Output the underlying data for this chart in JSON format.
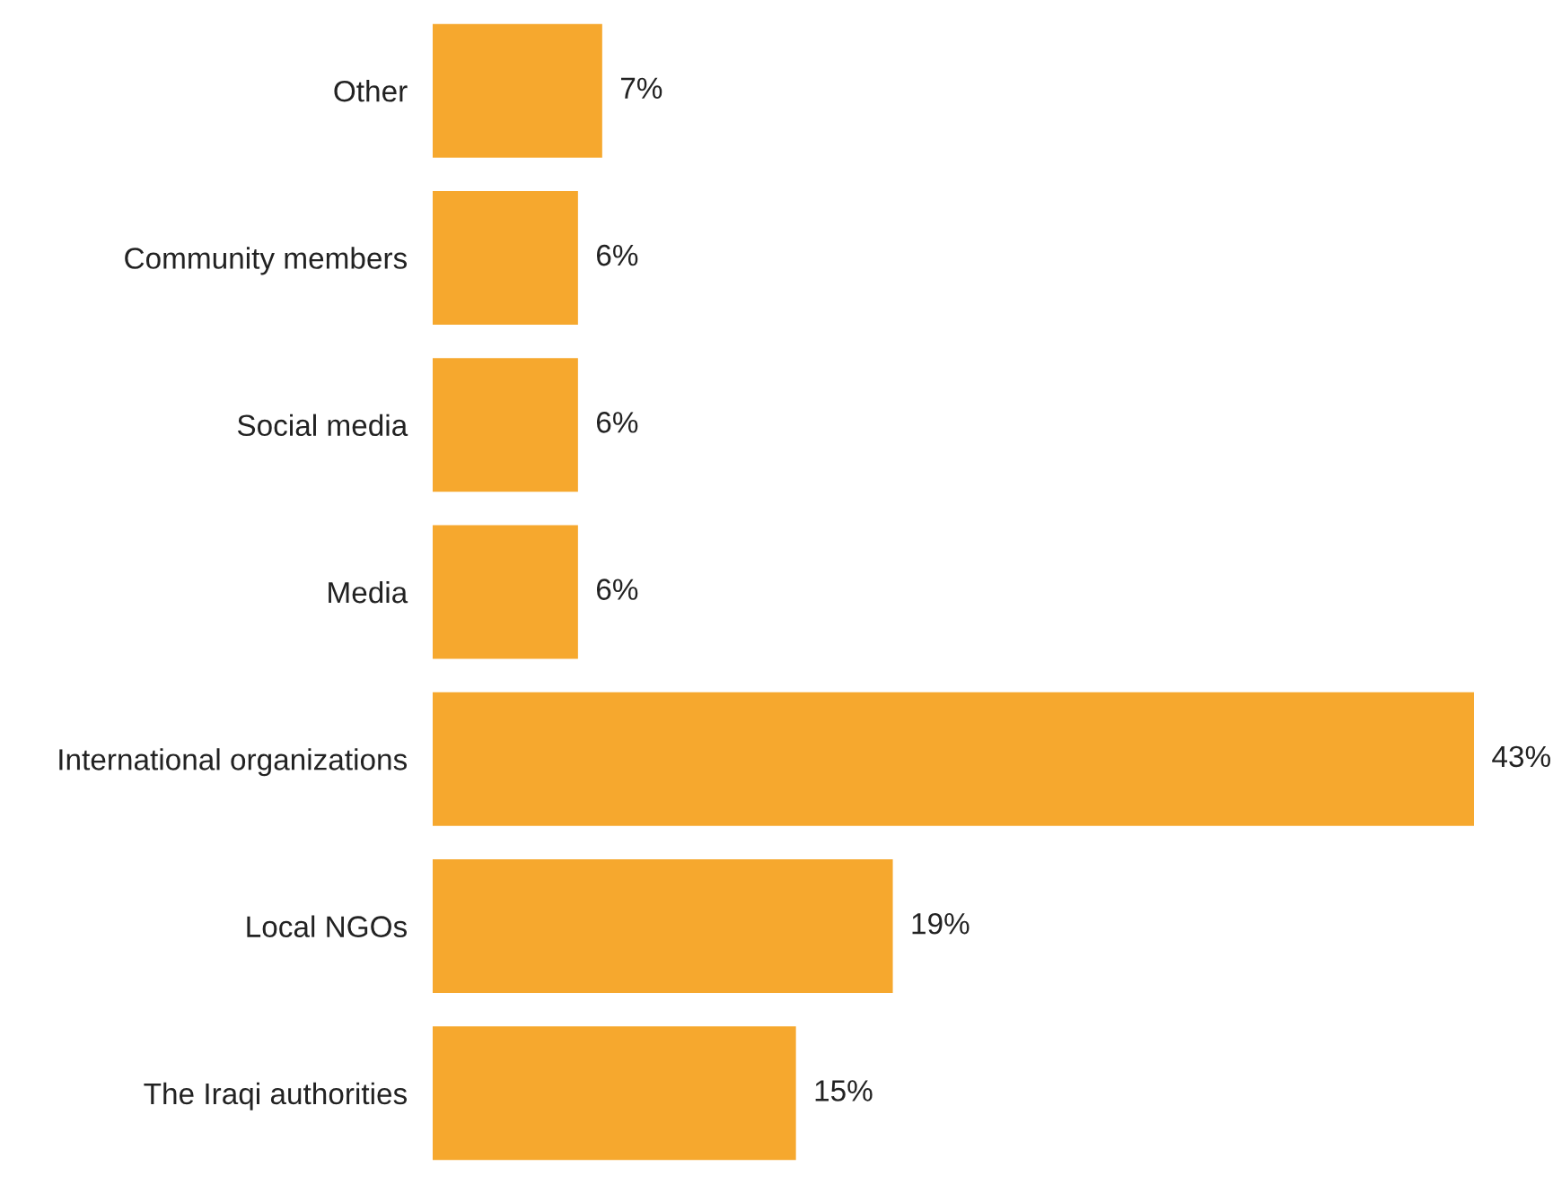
{
  "chart_data": {
    "type": "bar",
    "orientation": "horizontal",
    "categories": [
      "Other",
      "Community members",
      "Social media",
      "Media",
      "International organizations",
      "Local NGOs",
      "The Iraqi authorities"
    ],
    "values": [
      7,
      6,
      6,
      6,
      43,
      19,
      15
    ],
    "value_labels": [
      "7%",
      "6%",
      "6%",
      "6%",
      "43%",
      "19%",
      "15%"
    ],
    "color": "#f6a82e"
  }
}
